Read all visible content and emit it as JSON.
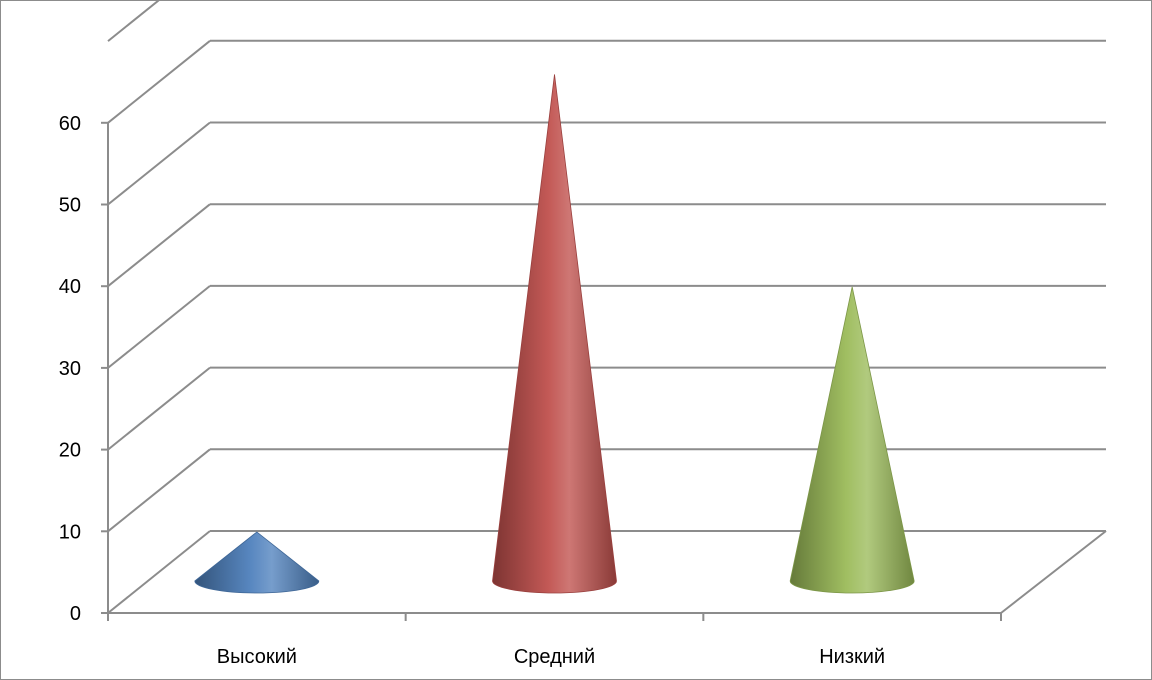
{
  "chart_data": {
    "type": "bar",
    "style": "3d-cone",
    "categories": [
      "Высокий",
      "Средний",
      "Низкий"
    ],
    "values": [
      6,
      62,
      36
    ],
    "colors": [
      "#4f81bd",
      "#c0504d",
      "#9bbb59"
    ],
    "ylim": [
      0,
      60
    ],
    "yticks": [
      "0",
      "10",
      "20",
      "30",
      "40",
      "50",
      "60"
    ],
    "grid": true,
    "legend": "none"
  }
}
